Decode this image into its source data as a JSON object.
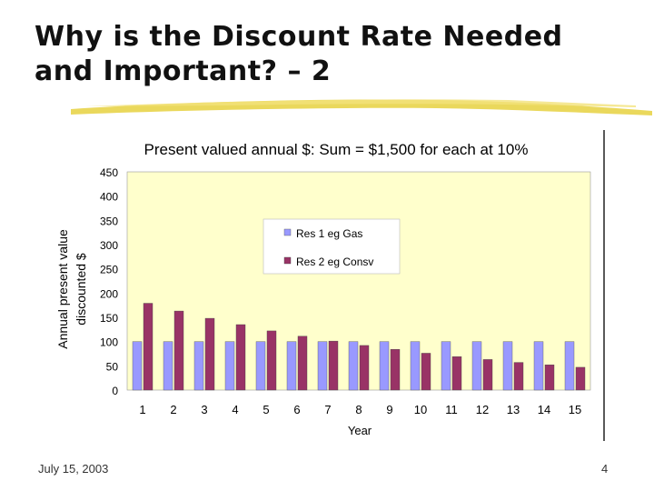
{
  "slide": {
    "title_line1": "Why is the Discount Rate Needed",
    "title_line2": "and Important? – 2",
    "date": "July 15, 2003",
    "page_number": "4"
  },
  "colors": {
    "plot_bg": "#FFFFCC",
    "series1": "#9999FF",
    "series2": "#993366",
    "accent_brush": "#E8D44A"
  },
  "chart_data": {
    "type": "bar",
    "title": "Present valued annual $: Sum = $1,500 for each at 10%",
    "xlabel": "Year",
    "ylabel_line1": "Annual present value",
    "ylabel_line2": "discounted $",
    "ylim": [
      0,
      450
    ],
    "yticks": [
      0,
      50,
      100,
      150,
      200,
      250,
      300,
      350,
      400,
      450
    ],
    "grid": false,
    "legend_position": "upper-center",
    "categories": [
      "1",
      "2",
      "3",
      "4",
      "5",
      "6",
      "7",
      "8",
      "9",
      "10",
      "11",
      "12",
      "13",
      "14",
      "15"
    ],
    "series": [
      {
        "name": "Res 1 eg Gas",
        "values": [
          100,
          100,
          100,
          100,
          100,
          100,
          100,
          100,
          100,
          100,
          100,
          100,
          100,
          100,
          100
        ]
      },
      {
        "name": "Res 2 eg Consv",
        "values": [
          179,
          163,
          148,
          135,
          122,
          111,
          101,
          92,
          84,
          76,
          69,
          63,
          57,
          52,
          47
        ]
      }
    ]
  }
}
